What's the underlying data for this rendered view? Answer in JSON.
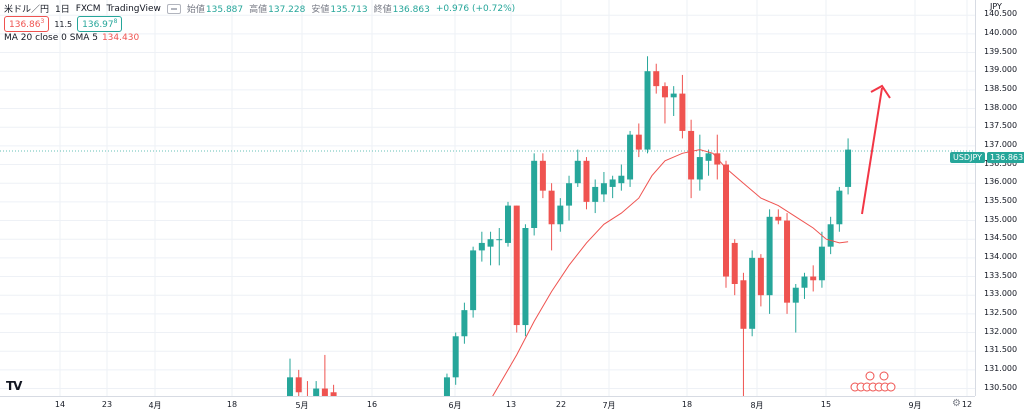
{
  "header": {
    "symbol": "米ドル／円",
    "interval": "1日",
    "broker": "FXCM",
    "source": "TradingView",
    "open_label": "始値",
    "open": "135.887",
    "high_label": "高値",
    "high": "137.228",
    "low_label": "安値",
    "low": "135.713",
    "close_label": "終値",
    "close": "136.863",
    "change": "+0.976 (+0.72%)"
  },
  "quote": {
    "bid": "136.86",
    "bid_sup": "3",
    "spread": "11.5",
    "ask": "136.97",
    "ask_sup": "8"
  },
  "indicator": {
    "label": "MA 20 close 0 SMA 5",
    "value": "134.430"
  },
  "price_scale": {
    "currency": "JPY",
    "ticks": [
      "140.500",
      "140.000",
      "139.500",
      "139.000",
      "138.500",
      "138.000",
      "137.500",
      "137.000",
      "136.500",
      "136.000",
      "135.500",
      "135.000",
      "134.500",
      "134.000",
      "133.500",
      "133.000",
      "132.500",
      "132.000",
      "131.500",
      "131.000",
      "130.500"
    ],
    "last_price": "136.863",
    "symbol_tag": "USDJPY"
  },
  "time_scale": {
    "ticks": [
      "14",
      "23",
      "4月",
      "18",
      "5月",
      "16",
      "6月",
      "13",
      "22",
      "7月",
      "18",
      "8月",
      "15",
      "9月",
      "12"
    ]
  },
  "colors": {
    "up": "#26a69a",
    "down": "#ef5350",
    "ma": "#ef5350",
    "grid": "#eef1f6",
    "arrow": "#f23645"
  },
  "chart_data": {
    "type": "candlestick",
    "ylim": [
      130.3,
      140.8
    ],
    "series": [
      {
        "name": "USDJPY",
        "candles": [
          {
            "x": 0,
            "o": 129.9,
            "h": 131.3,
            "l": 129.5,
            "c": 130.8
          },
          {
            "x": 1,
            "o": 130.8,
            "h": 131.0,
            "l": 130.2,
            "c": 130.4
          },
          {
            "x": 2,
            "o": 130.3,
            "h": 130.7,
            "l": 129.8,
            "c": 130.1
          },
          {
            "x": 3,
            "o": 130.1,
            "h": 130.7,
            "l": 129.9,
            "c": 130.5
          },
          {
            "x": 4,
            "o": 130.5,
            "h": 131.4,
            "l": 130.0,
            "c": 130.3
          },
          {
            "x": 5,
            "o": 130.4,
            "h": 130.6,
            "l": 129.6,
            "c": 129.9
          },
          {
            "x": 18,
            "o": 129.6,
            "h": 130.9,
            "l": 129.4,
            "c": 130.8
          },
          {
            "x": 19,
            "o": 130.8,
            "h": 132.0,
            "l": 130.6,
            "c": 131.9
          },
          {
            "x": 20,
            "o": 131.9,
            "h": 132.8,
            "l": 131.7,
            "c": 132.6
          },
          {
            "x": 21,
            "o": 132.6,
            "h": 134.3,
            "l": 132.4,
            "c": 134.2
          },
          {
            "x": 22,
            "o": 134.2,
            "h": 134.7,
            "l": 133.9,
            "c": 134.4
          },
          {
            "x": 23,
            "o": 134.3,
            "h": 134.7,
            "l": 133.8,
            "c": 134.5
          },
          {
            "x": 24,
            "o": 134.5,
            "h": 134.8,
            "l": 133.8,
            "c": 134.5
          },
          {
            "x": 25,
            "o": 134.4,
            "h": 135.5,
            "l": 134.3,
            "c": 135.4
          },
          {
            "x": 26,
            "o": 135.4,
            "h": 135.4,
            "l": 132.0,
            "c": 132.2
          },
          {
            "x": 27,
            "o": 132.2,
            "h": 134.9,
            "l": 131.9,
            "c": 134.8
          },
          {
            "x": 28,
            "o": 134.8,
            "h": 136.8,
            "l": 134.6,
            "c": 136.6
          },
          {
            "x": 29,
            "o": 136.6,
            "h": 136.8,
            "l": 135.6,
            "c": 135.8
          },
          {
            "x": 30,
            "o": 135.8,
            "h": 136.0,
            "l": 134.2,
            "c": 134.9
          },
          {
            "x": 31,
            "o": 134.9,
            "h": 135.6,
            "l": 134.7,
            "c": 135.4
          },
          {
            "x": 32,
            "o": 135.4,
            "h": 136.2,
            "l": 135.0,
            "c": 136.0
          },
          {
            "x": 33,
            "o": 136.0,
            "h": 136.9,
            "l": 135.9,
            "c": 136.6
          },
          {
            "x": 34,
            "o": 136.6,
            "h": 136.7,
            "l": 135.3,
            "c": 135.5
          },
          {
            "x": 35,
            "o": 135.5,
            "h": 136.1,
            "l": 135.2,
            "c": 135.9
          },
          {
            "x": 36,
            "o": 135.7,
            "h": 136.3,
            "l": 135.5,
            "c": 136.0
          },
          {
            "x": 37,
            "o": 135.9,
            "h": 136.2,
            "l": 135.6,
            "c": 136.1
          },
          {
            "x": 38,
            "o": 136.0,
            "h": 136.5,
            "l": 135.8,
            "c": 136.2
          },
          {
            "x": 39,
            "o": 136.1,
            "h": 137.4,
            "l": 135.9,
            "c": 137.3
          },
          {
            "x": 40,
            "o": 137.3,
            "h": 137.6,
            "l": 136.7,
            "c": 136.9
          },
          {
            "x": 41,
            "o": 136.9,
            "h": 139.4,
            "l": 136.8,
            "c": 139.0
          },
          {
            "x": 42,
            "o": 139.0,
            "h": 139.2,
            "l": 138.4,
            "c": 138.6
          },
          {
            "x": 43,
            "o": 138.6,
            "h": 138.7,
            "l": 137.6,
            "c": 138.3
          },
          {
            "x": 44,
            "o": 138.3,
            "h": 138.6,
            "l": 137.8,
            "c": 138.4
          },
          {
            "x": 45,
            "o": 138.4,
            "h": 138.9,
            "l": 137.2,
            "c": 137.4
          },
          {
            "x": 46,
            "o": 137.4,
            "h": 137.7,
            "l": 135.6,
            "c": 136.1
          },
          {
            "x": 47,
            "o": 136.1,
            "h": 137.3,
            "l": 135.8,
            "c": 136.7
          },
          {
            "x": 48,
            "o": 136.6,
            "h": 136.9,
            "l": 136.2,
            "c": 136.8
          },
          {
            "x": 49,
            "o": 136.8,
            "h": 137.3,
            "l": 136.1,
            "c": 136.5
          },
          {
            "x": 50,
            "o": 136.5,
            "h": 136.6,
            "l": 133.2,
            "c": 133.5
          },
          {
            "x": 51,
            "o": 134.4,
            "h": 134.5,
            "l": 133.0,
            "c": 133.3
          },
          {
            "x": 52,
            "o": 133.4,
            "h": 133.6,
            "l": 130.2,
            "c": 132.1
          },
          {
            "x": 53,
            "o": 132.1,
            "h": 134.2,
            "l": 131.9,
            "c": 134.0
          },
          {
            "x": 54,
            "o": 134.0,
            "h": 134.1,
            "l": 132.7,
            "c": 133.0
          },
          {
            "x": 55,
            "o": 133.0,
            "h": 135.3,
            "l": 132.5,
            "c": 135.1
          },
          {
            "x": 56,
            "o": 135.1,
            "h": 135.3,
            "l": 134.9,
            "c": 135.0
          },
          {
            "x": 57,
            "o": 135.0,
            "h": 135.2,
            "l": 132.5,
            "c": 132.8
          },
          {
            "x": 58,
            "o": 132.8,
            "h": 133.3,
            "l": 132.0,
            "c": 133.2
          },
          {
            "x": 59,
            "o": 133.2,
            "h": 133.6,
            "l": 132.9,
            "c": 133.5
          },
          {
            "x": 60,
            "o": 133.5,
            "h": 133.8,
            "l": 133.1,
            "c": 133.4
          },
          {
            "x": 61,
            "o": 133.4,
            "h": 134.7,
            "l": 133.2,
            "c": 134.3
          },
          {
            "x": 62,
            "o": 134.3,
            "h": 135.1,
            "l": 134.1,
            "c": 134.9
          },
          {
            "x": 63,
            "o": 134.9,
            "h": 135.9,
            "l": 134.7,
            "c": 135.8
          },
          {
            "x": 64,
            "o": 135.9,
            "h": 137.2,
            "l": 135.7,
            "c": 136.9
          }
        ]
      },
      {
        "name": "MA 20 close 0 SMA 5",
        "points": [
          [
            22.5,
            130.0
          ],
          [
            24,
            130.6
          ],
          [
            26,
            131.4
          ],
          [
            28,
            132.3
          ],
          [
            30,
            133.1
          ],
          [
            32,
            133.8
          ],
          [
            34,
            134.4
          ],
          [
            36,
            134.9
          ],
          [
            38,
            135.2
          ],
          [
            40,
            135.6
          ],
          [
            41.5,
            136.2
          ],
          [
            43,
            136.6
          ],
          [
            45,
            136.8
          ],
          [
            47,
            136.9
          ],
          [
            48.5,
            136.8
          ],
          [
            50,
            136.4
          ],
          [
            52,
            136.0
          ],
          [
            54,
            135.6
          ],
          [
            56,
            135.4
          ],
          [
            58,
            135.1
          ],
          [
            60,
            134.8
          ],
          [
            61.5,
            134.5
          ],
          [
            63,
            134.4
          ],
          [
            64,
            134.43
          ]
        ]
      }
    ]
  }
}
